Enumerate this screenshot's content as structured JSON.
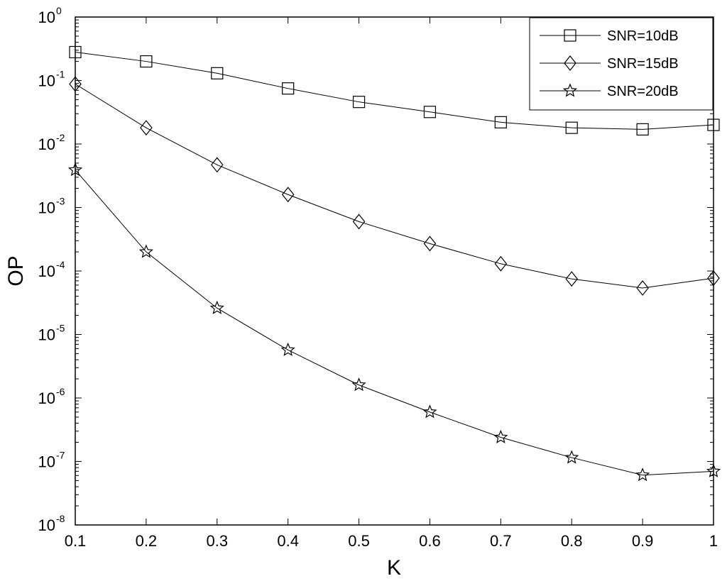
{
  "chart_data": {
    "type": "line",
    "xlabel": "K",
    "ylabel": "OP",
    "xlim": [
      0.1,
      1
    ],
    "ylim": [
      1e-08,
      1
    ],
    "y_scale": "log",
    "grid": false,
    "legend_position": "top-right",
    "x": [
      0.1,
      0.2,
      0.3,
      0.4,
      0.5,
      0.6,
      0.7,
      0.8,
      0.9,
      1
    ],
    "x_ticks": [
      "0.1",
      "0.2",
      "0.3",
      "0.4",
      "0.5",
      "0.6",
      "0.7",
      "0.8",
      "0.9",
      "1"
    ],
    "y_ticks": [
      {
        "base": "10",
        "exp": "-8",
        "value": 1e-08
      },
      {
        "base": "10",
        "exp": "-7",
        "value": 1e-07
      },
      {
        "base": "10",
        "exp": "-6",
        "value": 1e-06
      },
      {
        "base": "10",
        "exp": "-5",
        "value": 1e-05
      },
      {
        "base": "10",
        "exp": "-4",
        "value": 0.0001
      },
      {
        "base": "10",
        "exp": "-3",
        "value": 0.001
      },
      {
        "base": "10",
        "exp": "-2",
        "value": 0.01
      },
      {
        "base": "10",
        "exp": "-1",
        "value": 0.1
      },
      {
        "base": "10",
        "exp": "0",
        "value": 1
      }
    ],
    "series": [
      {
        "name": "SNR=10dB",
        "marker": "square",
        "values": [
          0.28,
          0.2,
          0.13,
          0.075,
          0.046,
          0.032,
          0.022,
          0.018,
          0.017,
          0.02
        ]
      },
      {
        "name": "SNR=15dB",
        "marker": "diamond",
        "values": [
          0.088,
          0.018,
          0.0047,
          0.0016,
          0.0006,
          0.00027,
          0.00013,
          7.5e-05,
          5.4e-05,
          7.7e-05
        ]
      },
      {
        "name": "SNR=20dB",
        "marker": "star",
        "values": [
          0.0039,
          0.0002,
          2.6e-05,
          5.7e-06,
          1.6e-06,
          6e-07,
          2.4e-07,
          1.15e-07,
          6.1e-08,
          7e-08
        ]
      }
    ],
    "colors": {
      "line": "#000000",
      "background": "#ffffff"
    }
  }
}
